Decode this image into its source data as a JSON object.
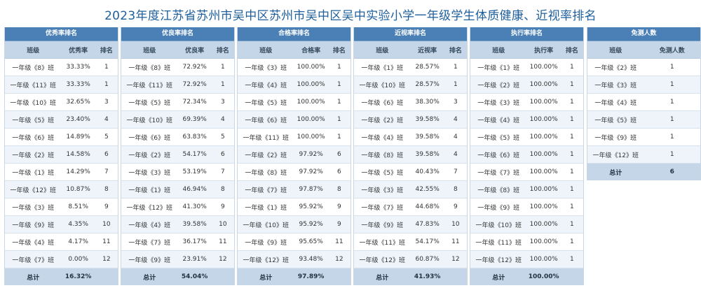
{
  "title": "2023年度江苏省苏州市吴中区苏州市吴中区吴中实验小学一年级学生体质健康、近视率排名",
  "panels": [
    {
      "heading": "优秀率排名",
      "col_class": "班级",
      "col_rate": "优秀率",
      "col_rank": "排名",
      "rows": [
        [
          "一年级《8》班",
          "33.33%",
          "1"
        ],
        [
          "一年级《11》班",
          "33.33%",
          "1"
        ],
        [
          "一年级《10》班",
          "32.65%",
          "3"
        ],
        [
          "一年级《5》班",
          "23.40%",
          "4"
        ],
        [
          "一年级《6》班",
          "14.89%",
          "5"
        ],
        [
          "一年级《2》班",
          "14.58%",
          "6"
        ],
        [
          "一年级《1》班",
          "14.29%",
          "7"
        ],
        [
          "一年级《12》班",
          "10.87%",
          "8"
        ],
        [
          "一年级《3》班",
          "8.51%",
          "9"
        ],
        [
          "一年级《9》班",
          "4.35%",
          "10"
        ],
        [
          "一年级《4》班",
          "4.17%",
          "11"
        ],
        [
          "一年级《7》班",
          "0.00%",
          "12"
        ]
      ],
      "total_label": "总计",
      "total_value": "16.32%"
    },
    {
      "heading": "优良率排名",
      "col_class": "班级",
      "col_rate": "优良率",
      "col_rank": "排名",
      "rows": [
        [
          "一年级《8》班",
          "72.92%",
          "1"
        ],
        [
          "一年级《11》班",
          "72.92%",
          "1"
        ],
        [
          "一年级《5》班",
          "72.34%",
          "3"
        ],
        [
          "一年级《10》班",
          "69.39%",
          "4"
        ],
        [
          "一年级《6》班",
          "63.83%",
          "5"
        ],
        [
          "一年级《2》班",
          "54.17%",
          "6"
        ],
        [
          "一年级《3》班",
          "53.19%",
          "7"
        ],
        [
          "一年级《1》班",
          "46.94%",
          "8"
        ],
        [
          "一年级《12》班",
          "41.30%",
          "9"
        ],
        [
          "一年级《4》班",
          "39.58%",
          "10"
        ],
        [
          "一年级《7》班",
          "36.17%",
          "11"
        ],
        [
          "一年级《9》班",
          "23.91%",
          "12"
        ]
      ],
      "total_label": "总计",
      "total_value": "54.04%"
    },
    {
      "heading": "合格率排名",
      "col_class": "班级",
      "col_rate": "合格率",
      "col_rank": "排名",
      "rows": [
        [
          "一年级《3》班",
          "100.00%",
          "1"
        ],
        [
          "一年级《4》班",
          "100.00%",
          "1"
        ],
        [
          "一年级《5》班",
          "100.00%",
          "1"
        ],
        [
          "一年级《6》班",
          "100.00%",
          "1"
        ],
        [
          "一年级《11》班",
          "100.00%",
          "1"
        ],
        [
          "一年级《2》班",
          "97.92%",
          "6"
        ],
        [
          "一年级《8》班",
          "97.92%",
          "6"
        ],
        [
          "一年级《7》班",
          "97.87%",
          "8"
        ],
        [
          "一年级《1》班",
          "95.92%",
          "9"
        ],
        [
          "一年级《10》班",
          "95.92%",
          "9"
        ],
        [
          "一年级《9》班",
          "95.65%",
          "11"
        ],
        [
          "一年级《12》班",
          "93.48%",
          "12"
        ]
      ],
      "total_label": "总计",
      "total_value": "97.89%"
    },
    {
      "heading": "近视率排名",
      "col_class": "班级",
      "col_rate": "近视率",
      "col_rank": "排名",
      "rows": [
        [
          "一年级《1》班",
          "28.57%",
          "1"
        ],
        [
          "一年级《10》班",
          "28.57%",
          "1"
        ],
        [
          "一年级《6》班",
          "38.30%",
          "3"
        ],
        [
          "一年级《2》班",
          "39.58%",
          "4"
        ],
        [
          "一年级《4》班",
          "39.58%",
          "4"
        ],
        [
          "一年级《8》班",
          "39.58%",
          "4"
        ],
        [
          "一年级《5》班",
          "40.43%",
          "7"
        ],
        [
          "一年级《3》班",
          "42.55%",
          "8"
        ],
        [
          "一年级《7》班",
          "44.68%",
          "9"
        ],
        [
          "一年级《9》班",
          "47.83%",
          "10"
        ],
        [
          "一年级《11》班",
          "54.17%",
          "11"
        ],
        [
          "一年级《12》班",
          "60.87%",
          "12"
        ]
      ],
      "total_label": "总计",
      "total_value": "41.93%"
    },
    {
      "heading": "执行率排名",
      "col_class": "班级",
      "col_rate": "执行率",
      "col_rank": "排名",
      "rows": [
        [
          "一年级《1》班",
          "100.00%",
          "1"
        ],
        [
          "一年级《2》班",
          "100.00%",
          "1"
        ],
        [
          "一年级《3》班",
          "100.00%",
          "1"
        ],
        [
          "一年级《4》班",
          "100.00%",
          "1"
        ],
        [
          "一年级《5》班",
          "100.00%",
          "1"
        ],
        [
          "一年级《6》班",
          "100.00%",
          "1"
        ],
        [
          "一年级《7》班",
          "100.00%",
          "1"
        ],
        [
          "一年级《8》班",
          "100.00%",
          "1"
        ],
        [
          "一年级《9》班",
          "100.00%",
          "1"
        ],
        [
          "一年级《10》班",
          "100.00%",
          "1"
        ],
        [
          "一年级《11》班",
          "100.00%",
          "1"
        ],
        [
          "一年级《12》班",
          "100.00%",
          "1"
        ]
      ],
      "total_label": "总计",
      "total_value": "100.00%"
    }
  ],
  "exempt_panel": {
    "heading": "免测人数",
    "col_class": "班级",
    "col_count": "免测人数",
    "rows": [
      [
        "一年级《2》班",
        "1"
      ],
      [
        "一年级《3》班",
        "1"
      ],
      [
        "一年级《4》班",
        "1"
      ],
      [
        "一年级《5》班",
        "1"
      ],
      [
        "一年级《9》班",
        "1"
      ],
      [
        "一年级《12》班",
        "1"
      ]
    ],
    "total_label": "总计",
    "total_value": "6"
  }
}
